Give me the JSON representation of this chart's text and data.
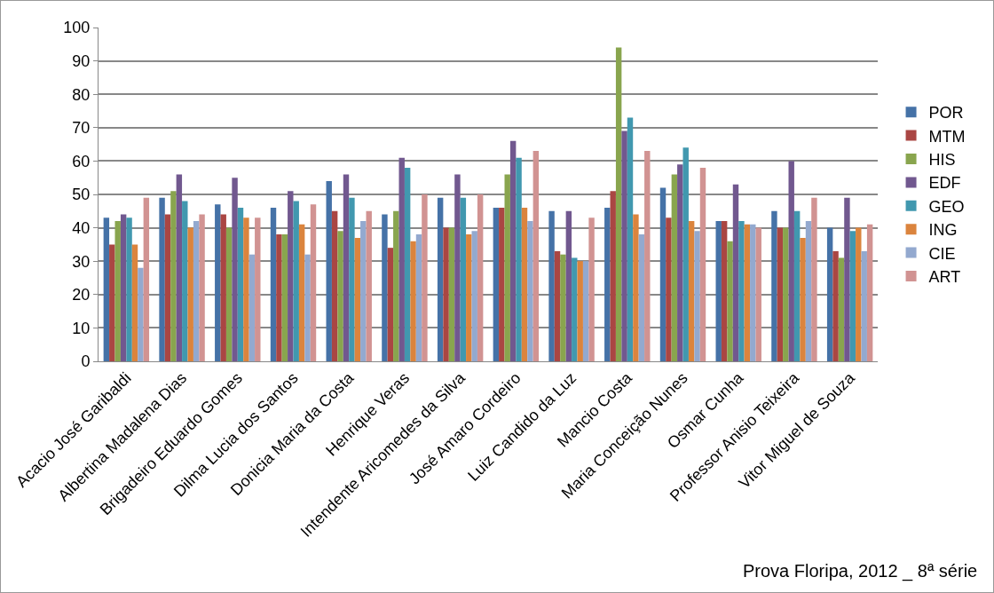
{
  "chart_data": {
    "type": "bar",
    "categories": [
      "Acacio José Garibaldi",
      "Albertina Madalena Dias",
      "Brigadeiro Eduardo Gomes",
      "Dilma Lucia dos Santos",
      "Donicia Maria da Costa",
      "Henrique Veras",
      "Intendente Aricomedes da Silva",
      "José Amaro Cordeiro",
      "Luiz Candido da Luz",
      "Mancio Costa",
      "Maria Conceição Nunes",
      "Osmar Cunha",
      "Professor Anisio Teixeira",
      "Vitor Miguel de Souza"
    ],
    "series": [
      {
        "name": "POR",
        "color": "#4572a7",
        "values": [
          43,
          49,
          47,
          46,
          54,
          44,
          49,
          46,
          45,
          46,
          52,
          42,
          45,
          40
        ]
      },
      {
        "name": "MTM",
        "color": "#aa4643",
        "values": [
          35,
          44,
          44,
          38,
          45,
          34,
          40,
          46,
          33,
          51,
          43,
          42,
          40,
          33
        ]
      },
      {
        "name": "HIS",
        "color": "#89a54e",
        "values": [
          42,
          51,
          40,
          38,
          39,
          45,
          40,
          56,
          32,
          94,
          56,
          36,
          40,
          31
        ]
      },
      {
        "name": "EDF",
        "color": "#71588f",
        "values": [
          44,
          56,
          55,
          51,
          56,
          61,
          56,
          66,
          45,
          69,
          59,
          53,
          60,
          49
        ]
      },
      {
        "name": "GEO",
        "color": "#4198af",
        "values": [
          43,
          48,
          46,
          48,
          49,
          58,
          49,
          61,
          31,
          73,
          64,
          42,
          45,
          39
        ]
      },
      {
        "name": "ING",
        "color": "#db843d",
        "values": [
          35,
          40,
          43,
          41,
          37,
          36,
          38,
          46,
          30,
          44,
          42,
          41,
          37,
          40
        ]
      },
      {
        "name": "CIE",
        "color": "#93a9cf",
        "values": [
          28,
          42,
          32,
          32,
          42,
          38,
          39,
          42,
          30,
          38,
          39,
          41,
          42,
          33
        ]
      },
      {
        "name": "ART",
        "color": "#d19392",
        "values": [
          49,
          44,
          43,
          47,
          45,
          50,
          50,
          63,
          43,
          63,
          58,
          40,
          49,
          41
        ]
      }
    ],
    "ylim": [
      0,
      100
    ],
    "yticks": [
      0,
      10,
      20,
      30,
      40,
      50,
      60,
      70,
      80,
      90,
      100
    ],
    "grid": "y",
    "legend": "right",
    "annotations": [
      "Prova Floripa, 2012 _ 8ª série"
    ]
  }
}
